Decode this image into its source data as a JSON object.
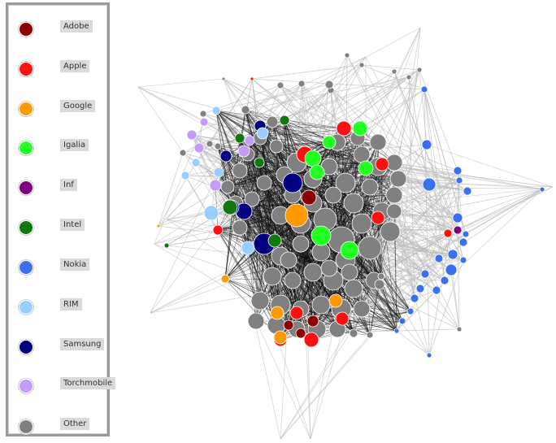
{
  "legend": {
    "items": [
      {
        "label": "Adobe",
        "color": "#8b0000"
      },
      {
        "label": "Apple",
        "color": "#ff1010"
      },
      {
        "label": "Google",
        "color": "#ff9900"
      },
      {
        "label": "Igalia",
        "color": "#22ff22"
      },
      {
        "label": "Inf",
        "color": "#800080"
      },
      {
        "label": "Intel",
        "color": "#117711"
      },
      {
        "label": "Nokia",
        "color": "#3a6ff0"
      },
      {
        "label": "RIM",
        "color": "#99ccff"
      },
      {
        "label": "Samsung",
        "color": "#000080"
      },
      {
        "label": "Torchmobile",
        "color": "#c49cf7"
      },
      {
        "label": "Other",
        "color": "#808080"
      }
    ]
  },
  "network": {
    "edge_color_dense": "#111111",
    "edge_color_light": "#bbbbbb"
  }
}
